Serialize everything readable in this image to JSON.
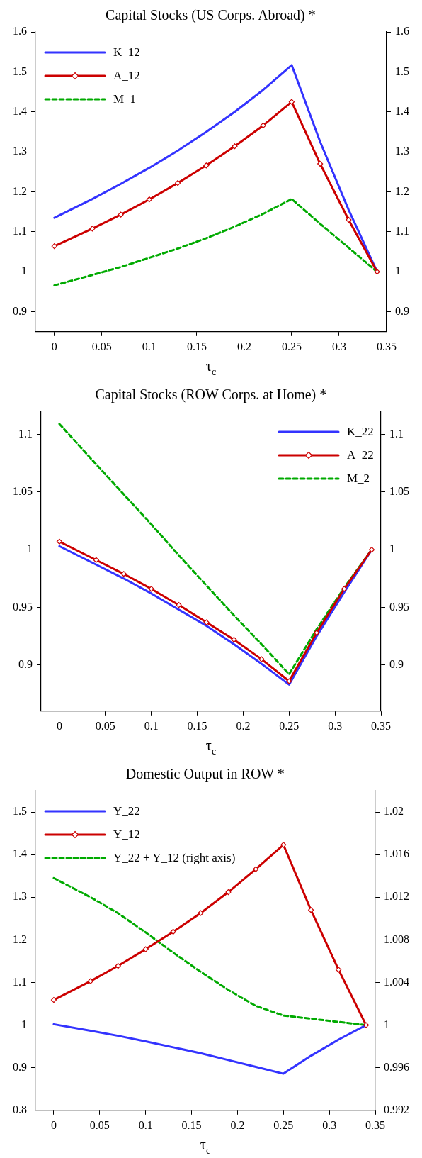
{
  "chart_data": [
    {
      "type": "line",
      "title": "Capital Stocks (US Corps. Abroad) *",
      "xlabel": "τ$_{c}$",
      "x": [
        0,
        0.04,
        0.07,
        0.1,
        0.13,
        0.16,
        0.19,
        0.22,
        0.25,
        0.28,
        0.31,
        0.34
      ],
      "xlim": [
        -0.02,
        0.35
      ],
      "xticks": [
        0,
        0.05,
        0.1,
        0.15,
        0.2,
        0.25,
        0.3,
        0.35
      ],
      "ylim": [
        0.85,
        1.6
      ],
      "yticks": [
        0.9,
        1,
        1.1,
        1.2,
        1.3,
        1.4,
        1.5,
        1.6
      ],
      "y2lim": [
        0.85,
        1.6
      ],
      "y2ticks": [
        0.9,
        1,
        1.1,
        1.2,
        1.3,
        1.4,
        1.5,
        1.6
      ],
      "grid": false,
      "legend": "top left",
      "series": [
        {
          "name": "K_12",
          "color": "#3333ff",
          "values": [
            1.135,
            1.182,
            1.22,
            1.26,
            1.303,
            1.35,
            1.4,
            1.455,
            1.517,
            1.325,
            1.155,
            1.0
          ]
        },
        {
          "name": "A_12",
          "color": "#cc0000",
          "marker": "diamond",
          "values": [
            1.064,
            1.108,
            1.143,
            1.181,
            1.222,
            1.266,
            1.314,
            1.366,
            1.425,
            1.27,
            1.13,
            1.0
          ]
        },
        {
          "name": "M_1",
          "color": "#00aa00",
          "line_style": "dashed",
          "values": [
            0.966,
            0.992,
            1.012,
            1.035,
            1.058,
            1.084,
            1.113,
            1.145,
            1.182,
            1.12,
            1.06,
            1.0
          ]
        }
      ]
    },
    {
      "type": "line",
      "title": "Capital Stocks (ROW Corps. at Home) *",
      "xlabel": "τ$_{c}$",
      "x": [
        0,
        0.04,
        0.07,
        0.1,
        0.13,
        0.16,
        0.19,
        0.22,
        0.25,
        0.28,
        0.31,
        0.34
      ],
      "xlim": [
        -0.02,
        0.35
      ],
      "xticks": [
        0,
        0.05,
        0.1,
        0.15,
        0.2,
        0.25,
        0.3,
        0.35
      ],
      "ylim": [
        0.86,
        1.12
      ],
      "yticks": [
        0.9,
        0.95,
        1,
        1.05,
        1.1
      ],
      "y2lim": [
        0.86,
        1.12
      ],
      "y2ticks": [
        0.9,
        0.95,
        1,
        1.05,
        1.1
      ],
      "grid": false,
      "legend": "top right",
      "series": [
        {
          "name": "K_22",
          "color": "#3333ff",
          "values": [
            1.003,
            0.987,
            0.975,
            0.962,
            0.948,
            0.934,
            0.918,
            0.901,
            0.883,
            0.925,
            0.963,
            1.0
          ]
        },
        {
          "name": "A_22",
          "color": "#cc0000",
          "marker": "diamond",
          "values": [
            1.007,
            0.991,
            0.979,
            0.966,
            0.952,
            0.937,
            0.922,
            0.905,
            0.886,
            0.928,
            0.966,
            1.0
          ]
        },
        {
          "name": "M_2",
          "color": "#00aa00",
          "line_style": "dashed",
          "values": [
            1.109,
            1.074,
            1.048,
            1.022,
            0.995,
            0.969,
            0.943,
            0.918,
            0.892,
            0.931,
            0.967,
            1.0
          ]
        }
      ]
    },
    {
      "type": "line",
      "title": "Domestic Output in ROW *",
      "xlabel": "τ$_{c}$",
      "x": [
        0,
        0.04,
        0.07,
        0.1,
        0.13,
        0.16,
        0.19,
        0.22,
        0.25,
        0.28,
        0.31,
        0.34
      ],
      "xlim": [
        -0.02,
        0.35
      ],
      "xticks": [
        0,
        0.05,
        0.1,
        0.15,
        0.2,
        0.25,
        0.3,
        0.35
      ],
      "ylim": [
        0.8,
        1.55
      ],
      "yticks": [
        0.8,
        0.9,
        1,
        1.1,
        1.2,
        1.3,
        1.4,
        1.5
      ],
      "y2lim": [
        0.992,
        1.022
      ],
      "y2ticks": [
        0.992,
        0.996,
        1,
        1.004,
        1.008,
        1.012,
        1.016,
        1.02
      ],
      "grid": false,
      "legend": "top left",
      "series": [
        {
          "name": "Y_22",
          "color": "#3333ff",
          "values": [
            1.002,
            0.987,
            0.975,
            0.962,
            0.948,
            0.934,
            0.918,
            0.902,
            0.886,
            0.928,
            0.966,
            1.0
          ]
        },
        {
          "name": "Y_12",
          "color": "#cc0000",
          "marker": "diamond",
          "values": [
            1.059,
            1.103,
            1.139,
            1.178,
            1.219,
            1.263,
            1.312,
            1.366,
            1.423,
            1.27,
            1.13,
            1.0
          ]
        },
        {
          "name": "Y_22 + Y_12  (right axis)",
          "color": "#00aa00",
          "line_style": "dashed",
          "axis": "y2",
          "values": [
            1.0138,
            1.012,
            1.0105,
            1.0087,
            1.0068,
            1.005,
            1.0033,
            1.0018,
            1.0009,
            1.0006,
            1.0003,
            1.0
          ]
        }
      ]
    }
  ]
}
